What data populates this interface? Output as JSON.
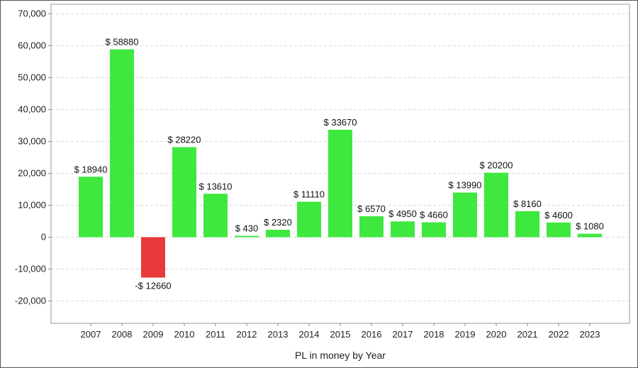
{
  "chart_data": {
    "type": "bar",
    "title": "",
    "xlabel": "PL in money by Year",
    "ylabel": "",
    "categories": [
      "2007",
      "2008",
      "2009",
      "2010",
      "2011",
      "2012",
      "2013",
      "2014",
      "2015",
      "2016",
      "2017",
      "2018",
      "2019",
      "2020",
      "2021",
      "2022",
      "2023"
    ],
    "values": [
      18940,
      58880,
      -12660,
      28220,
      13610,
      430,
      2320,
      11110,
      33670,
      6570,
      4950,
      4660,
      13990,
      20200,
      8160,
      4600,
      1080
    ],
    "data_labels": [
      "$ 18940",
      "$ 58880",
      "-$ 12660",
      "$ 28220",
      "$ 13610",
      "$ 430",
      "$ 2320",
      "$ 11110",
      "$ 33670",
      "$ 6570",
      "$ 4950",
      "$ 4660",
      "$ 13990",
      "$ 20200",
      "$ 8160",
      "$ 4600",
      "$ 1080"
    ],
    "yticks": [
      -20000,
      -10000,
      0,
      10000,
      20000,
      30000,
      40000,
      50000,
      60000,
      70000
    ],
    "ytick_labels": [
      "-20,000",
      "-10,000",
      "0",
      "10,000",
      "20,000",
      "30,000",
      "40,000",
      "50,000",
      "60,000",
      "70,000"
    ],
    "ylim": [
      -27000,
      73000
    ],
    "grid": true,
    "legend": "none",
    "colors": {
      "positive": "#3ee83e",
      "negative": "#e83a3a",
      "grid": "#d8d8d8",
      "axis": "#888888"
    }
  }
}
